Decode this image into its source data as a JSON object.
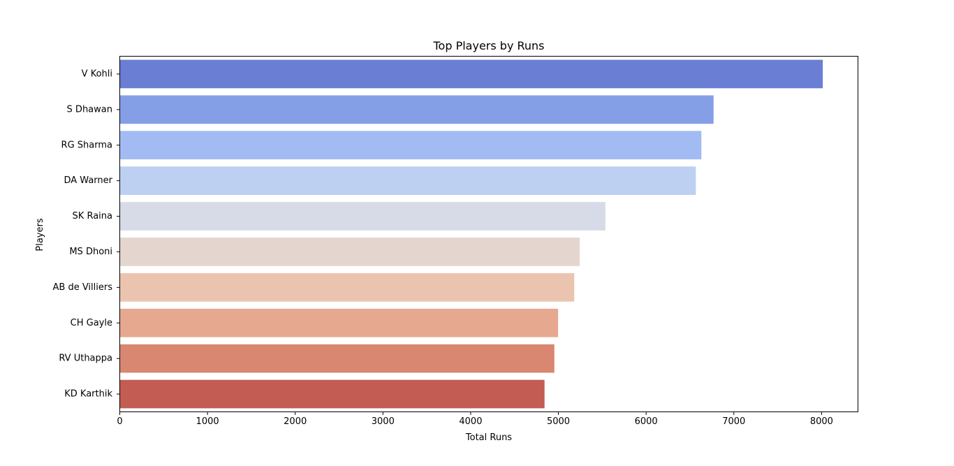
{
  "chart_data": {
    "type": "bar",
    "orientation": "horizontal",
    "title": "Top Players by Runs",
    "xlabel": "Total Runs",
    "ylabel": "Players",
    "categories": [
      "V Kohli",
      "S Dhawan",
      "RG Sharma",
      "DA Warner",
      "SK Raina",
      "MS Dhoni",
      "AB de Villiers",
      "CH Gayle",
      "RV Uthappa",
      "KD Karthik"
    ],
    "values": [
      8014,
      6769,
      6630,
      6567,
      5536,
      5243,
      5181,
      4997,
      4954,
      4842
    ],
    "xlim": [
      0,
      8415
    ],
    "xticks": [
      0,
      1000,
      2000,
      3000,
      4000,
      5000,
      6000,
      7000,
      8000
    ],
    "xtick_labels": [
      "0",
      "1000",
      "2000",
      "3000",
      "4000",
      "5000",
      "6000",
      "7000",
      "8000"
    ],
    "grid": false,
    "colors": [
      "#6a7ed3",
      "#859fe6",
      "#a2bbf2",
      "#bdd0f2",
      "#d6dbe7",
      "#e4d6cf",
      "#ebc4b0",
      "#e6a88f",
      "#d98771",
      "#c35d53"
    ]
  }
}
